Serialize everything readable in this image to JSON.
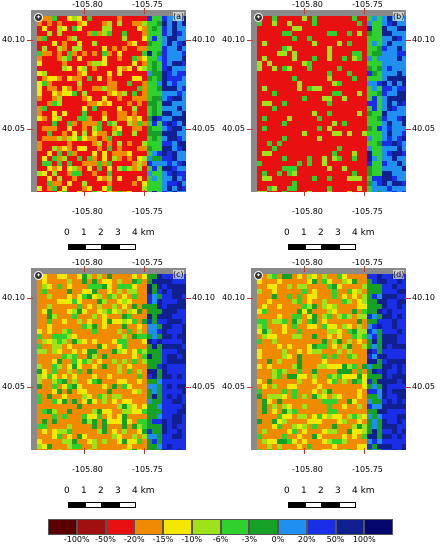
{
  "panels": [
    {
      "letter": "(a)"
    },
    {
      "letter": "(b)"
    },
    {
      "letter": "(c)"
    },
    {
      "letter": "(d)"
    }
  ],
  "axes": {
    "lon_top": [
      "-105.80",
      "-105.75"
    ],
    "lon_bottom": [
      "-105.80",
      "-105.75"
    ],
    "lat": [
      "40.10",
      "40.05"
    ]
  },
  "scale": {
    "ticks": [
      "0",
      "1",
      "2",
      "3",
      "4 km"
    ]
  },
  "legend": {
    "labels": [
      "-100%",
      "-50%",
      "-20%",
      "-15%",
      "-10%",
      "-6%",
      "-3%",
      "0%",
      "20%",
      "50%",
      "100%"
    ],
    "colors": [
      "#5a0000",
      "#a01010",
      "#e81010",
      "#f08a00",
      "#f5e800",
      "#9ee21a",
      "#2fd12f",
      "#16a026",
      "#1f8ff0",
      "#1a2ee8",
      "#102090",
      "#05066e"
    ]
  },
  "map_colors": {
    "frame": "#8a8a8a",
    "tick": "#c0392b"
  }
}
